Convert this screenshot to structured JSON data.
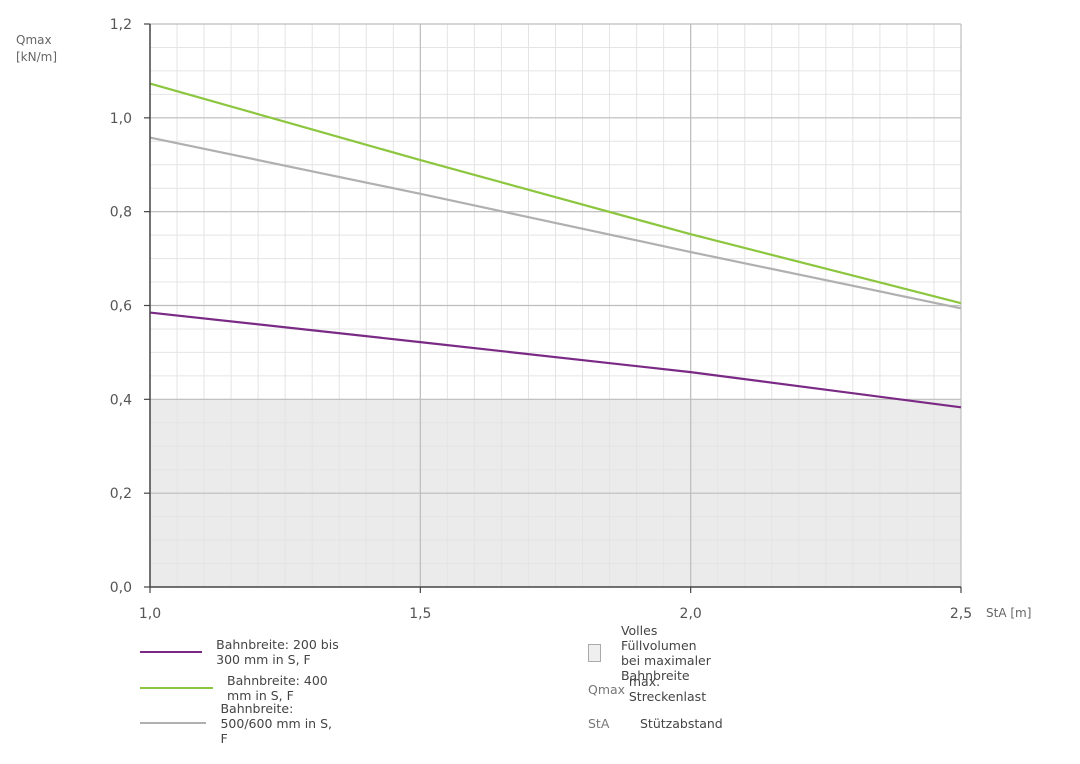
{
  "chart_data": {
    "type": "line",
    "xlabel": "StA [m]",
    "ylabel_line1": "Qmax",
    "ylabel_line2": "[kN/m]",
    "xlim": [
      1.0,
      2.5
    ],
    "ylim": [
      0.0,
      1.2
    ],
    "x_ticks": [
      "1,0",
      "1,5",
      "2,0",
      "2,5"
    ],
    "x_tick_values": [
      1.0,
      1.5,
      2.0,
      2.5
    ],
    "y_ticks": [
      "0,0",
      "0,2",
      "0,4",
      "0,6",
      "0,8",
      "1,0",
      "1,2"
    ],
    "y_tick_values": [
      0.0,
      0.2,
      0.4,
      0.6,
      0.8,
      1.0,
      1.2
    ],
    "grid": true,
    "shaded_region": {
      "y_from": 0.0,
      "y_to": 0.4,
      "color": "#ebebeb"
    },
    "series": [
      {
        "name": "Bahnbreite: 200 bis 300 mm in S, F",
        "color": "#7a2a85",
        "x": [
          1.0,
          1.5,
          2.0,
          2.5
        ],
        "values": [
          0.585,
          0.522,
          0.458,
          0.383
        ]
      },
      {
        "name": "Bahnbreite: 400 mm in S, F",
        "color": "#8cc63f",
        "x": [
          1.0,
          1.5,
          2.0,
          2.5
        ],
        "values": [
          1.073,
          0.91,
          0.752,
          0.605
        ]
      },
      {
        "name": "Bahnbreite: 500/600 mm in S, F",
        "color": "#b0b0b0",
        "x": [
          1.0,
          1.5,
          2.0,
          2.5
        ],
        "values": [
          0.958,
          0.838,
          0.714,
          0.594
        ]
      }
    ]
  },
  "legend": {
    "lines": [
      {
        "label": "Bahnbreite: 200 bis 300 mm in S, F",
        "color": "#7a2a85"
      },
      {
        "label": "Bahnbreite: 400 mm in S, F",
        "color": "#8cc63f"
      },
      {
        "label": "Bahnbreite: 500/600 mm in S, F",
        "color": "#b0b0b0"
      }
    ],
    "box_label": "Volles Füllvolumen bei maximaler Bahnbreite",
    "qmax_abbr": "Qmax",
    "qmax_desc": "max. Streckenlast",
    "sta_abbr": "StA",
    "sta_desc": "Stützabstand"
  }
}
